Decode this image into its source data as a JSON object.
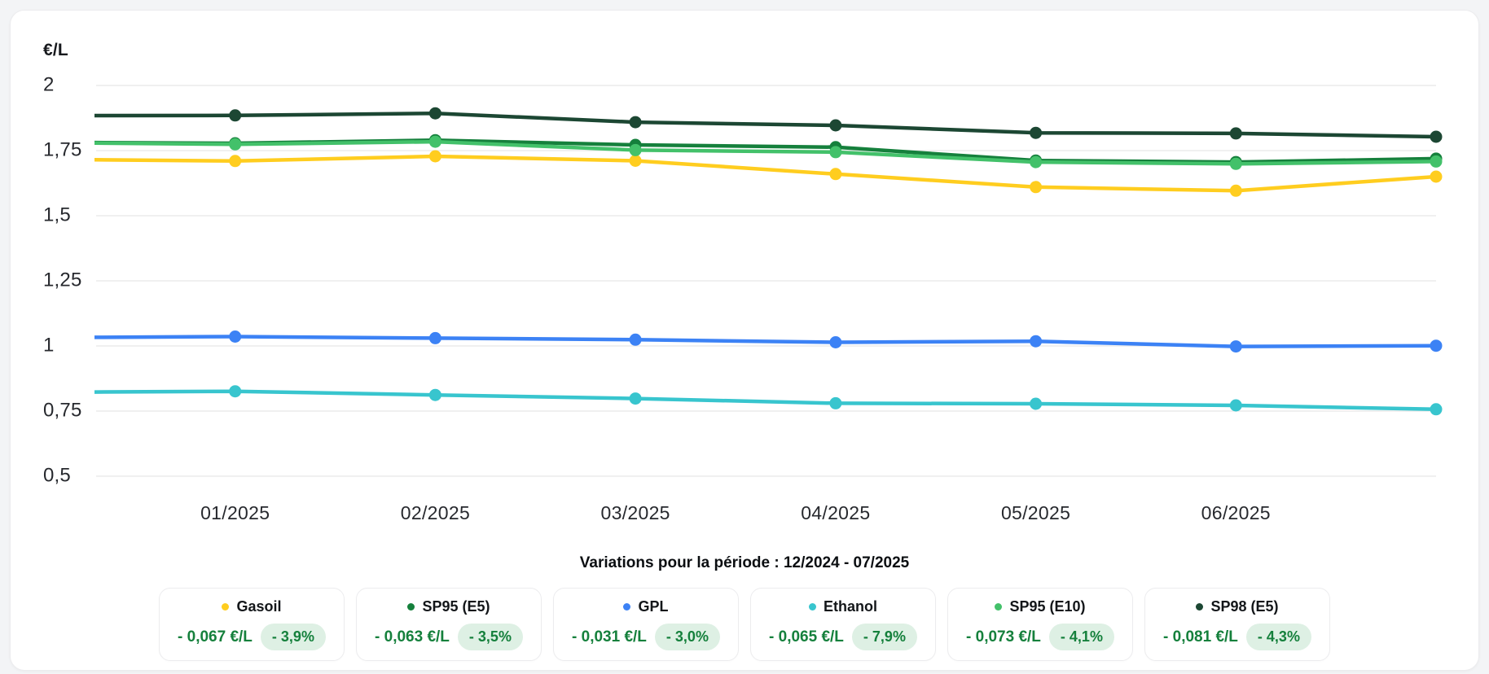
{
  "chart_data": {
    "type": "line",
    "ylabel": "€/L",
    "x": [
      "12/2024",
      "01/2025",
      "02/2025",
      "03/2025",
      "04/2025",
      "05/2025",
      "06/2025",
      "07/2025"
    ],
    "x_tick_labels": [
      "01/2025",
      "02/2025",
      "03/2025",
      "04/2025",
      "05/2025",
      "06/2025"
    ],
    "yticks": [
      2,
      1.75,
      1.5,
      1.25,
      1,
      0.75,
      0.5
    ],
    "ytick_labels": [
      "2",
      "1,75",
      "1,5",
      "1,25",
      "1",
      "0,75",
      "0,5"
    ],
    "ylim": [
      0.5,
      2
    ],
    "grid": true,
    "legend_position": "bottom",
    "series": [
      {
        "name": "Gasoil",
        "color": "#FFCD1F",
        "values": [
          1.717,
          1.71,
          1.728,
          1.711,
          1.66,
          1.61,
          1.596,
          1.65
        ]
      },
      {
        "name": "SP95 (E5)",
        "color": "#15803C",
        "values": [
          1.782,
          1.778,
          1.79,
          1.772,
          1.763,
          1.712,
          1.706,
          1.719
        ]
      },
      {
        "name": "GPL",
        "color": "#3C82F5",
        "values": [
          1.032,
          1.036,
          1.03,
          1.024,
          1.014,
          1.018,
          0.998,
          1.001
        ]
      },
      {
        "name": "Ethanol",
        "color": "#38C5CE",
        "values": [
          0.822,
          0.826,
          0.812,
          0.798,
          0.78,
          0.778,
          0.772,
          0.757
        ]
      },
      {
        "name": "SP95 (E10)",
        "color": "#43C16A",
        "values": [
          1.781,
          1.774,
          1.784,
          1.752,
          1.744,
          1.706,
          1.699,
          1.708
        ]
      },
      {
        "name": "SP98 (E5)",
        "color": "#1C4733",
        "values": [
          1.884,
          1.885,
          1.893,
          1.859,
          1.847,
          1.818,
          1.816,
          1.803
        ]
      }
    ]
  },
  "legend": {
    "title": "Variations pour la période : 12/2024 - 07/2025",
    "cards": [
      {
        "name": "Gasoil",
        "color": "#FFCD1F",
        "delta": "- 0,067 €/L",
        "pct": "- 3,9%"
      },
      {
        "name": "SP95 (E5)",
        "color": "#15803C",
        "delta": "- 0,063 €/L",
        "pct": "- 3,5%"
      },
      {
        "name": "GPL",
        "color": "#3C82F5",
        "delta": "- 0,031 €/L",
        "pct": "- 3,0%"
      },
      {
        "name": "Ethanol",
        "color": "#38C5CE",
        "delta": "- 0,065 €/L",
        "pct": "- 7,9%"
      },
      {
        "name": "SP95 (E10)",
        "color": "#43C16A",
        "delta": "- 0,073 €/L",
        "pct": "- 4,1%"
      },
      {
        "name": "SP98 (E5)",
        "color": "#1C4733",
        "delta": "- 0,081 €/L",
        "pct": "- 4,3%"
      }
    ],
    "value_color": "#15803c",
    "badge_bg": "#def0e4",
    "grid_color": "#ebebeb"
  }
}
